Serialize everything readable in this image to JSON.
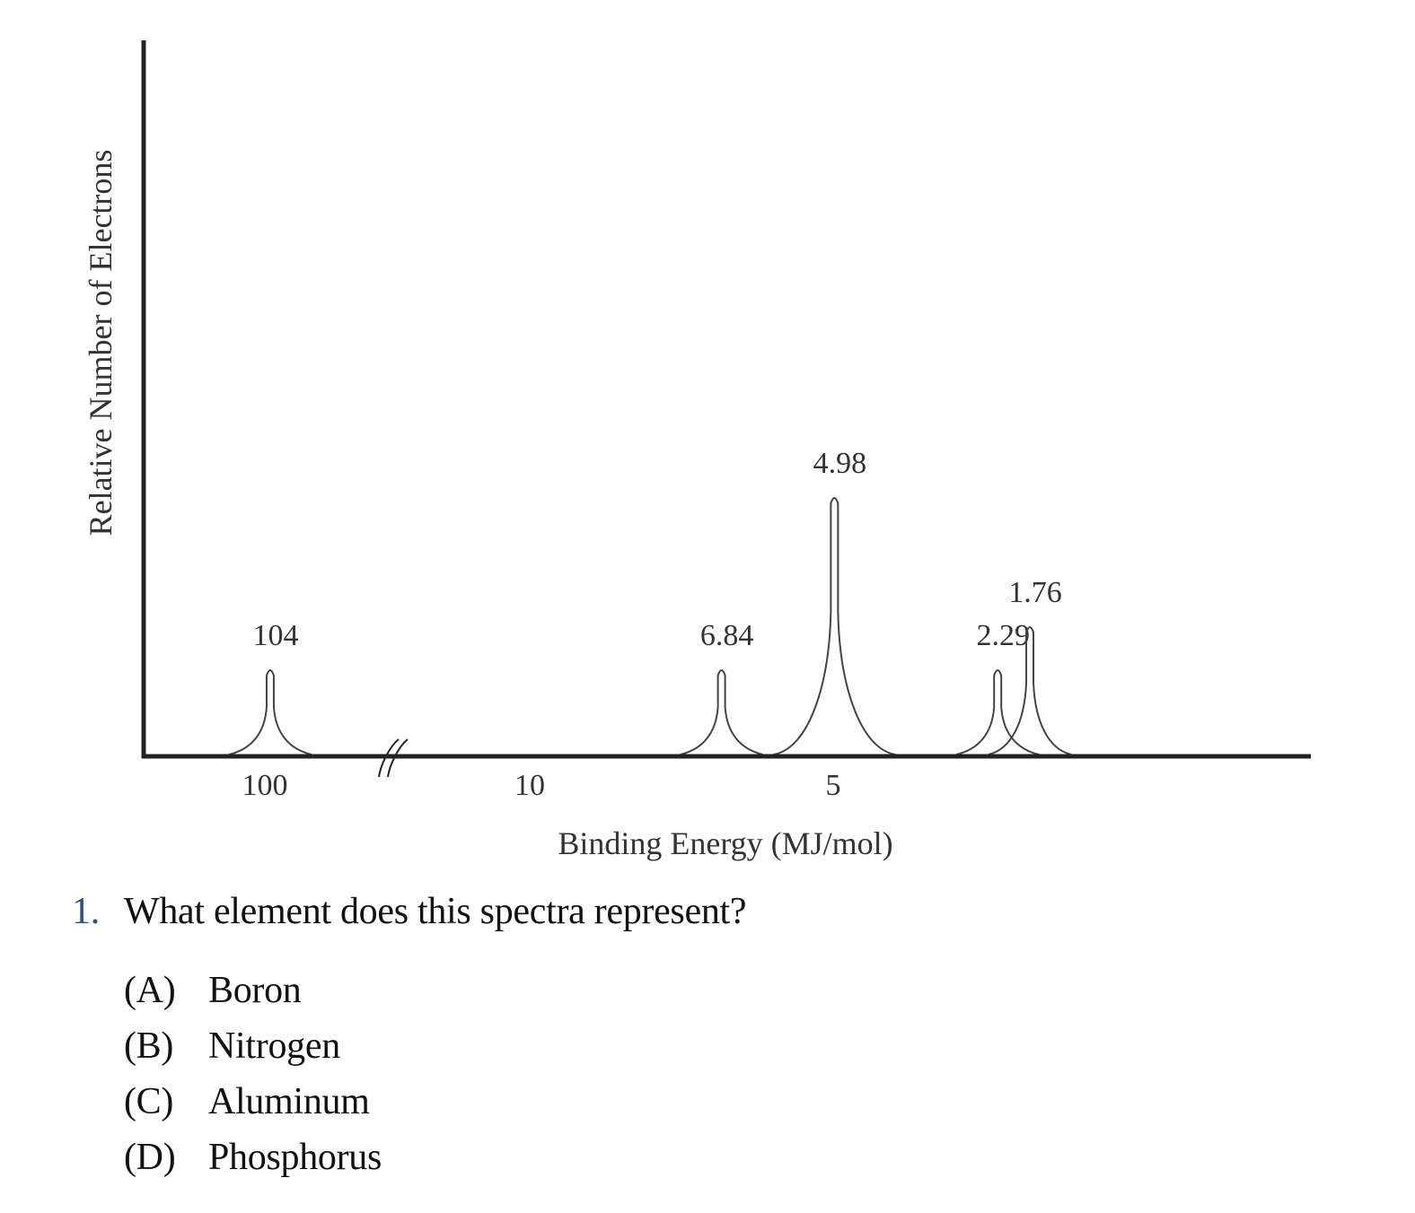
{
  "chart_data": {
    "type": "line",
    "subtype": "photoelectron-spectrum",
    "xlabel": "Binding Energy (MJ/mol)",
    "ylabel": "Relative Number of Electrons",
    "x_direction": "decreasing",
    "axis_break": "between 100 and 10",
    "x_ticks": [
      "100",
      "10",
      "5"
    ],
    "peaks": [
      {
        "label": "104",
        "energy": 104,
        "relative_height": 2
      },
      {
        "label": "6.84",
        "energy": 6.84,
        "relative_height": 2
      },
      {
        "label": "4.98",
        "energy": 4.98,
        "relative_height": 6
      },
      {
        "label": "2.29",
        "energy": 2.29,
        "relative_height": 2
      },
      {
        "label": "1.76",
        "energy": 1.76,
        "relative_height": 3
      }
    ]
  },
  "question": {
    "number": "1.",
    "text": "What element does this spectra represent?",
    "options": [
      {
        "letter": "(A)",
        "text": "Boron"
      },
      {
        "letter": "(B)",
        "text": "Nitrogen"
      },
      {
        "letter": "(C)",
        "text": "Aluminum"
      },
      {
        "letter": "(D)",
        "text": "Phosphorus"
      }
    ]
  }
}
